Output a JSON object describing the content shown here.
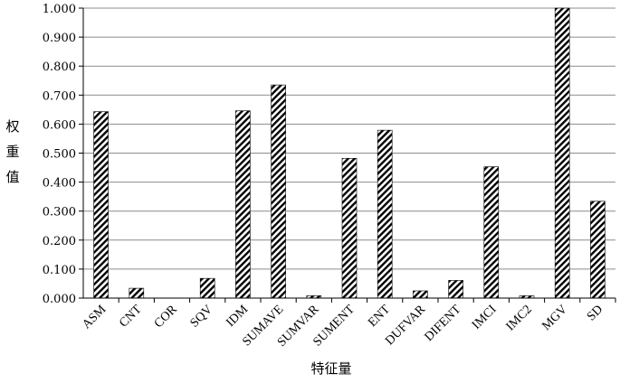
{
  "chart_data": {
    "type": "bar",
    "categories": [
      "ASM",
      "CNT",
      "COR",
      "SQV",
      "IDM",
      "SUMAVE",
      "SUMVAR",
      "SUMENT",
      "ENT",
      "DUFVAR",
      "DIFENT",
      "IMCI",
      "IMC2",
      "MGV",
      "SD"
    ],
    "values": [
      0.643,
      0.034,
      0.0,
      0.068,
      0.646,
      0.735,
      0.008,
      0.482,
      0.579,
      0.025,
      0.061,
      0.453,
      0.008,
      1.0,
      0.334
    ],
    "title": "",
    "xlabel": "特征量",
    "ylabel": "权重值",
    "ylim": [
      0,
      1.0
    ],
    "yticks": [
      "0.000",
      "0.100",
      "0.200",
      "0.300",
      "0.400",
      "0.500",
      "0.600",
      "0.700",
      "0.800",
      "0.900",
      "1.000"
    ],
    "grid": true,
    "legend": "none",
    "bar_pattern": "diagonal-hatch",
    "bar_color": "#000000"
  }
}
